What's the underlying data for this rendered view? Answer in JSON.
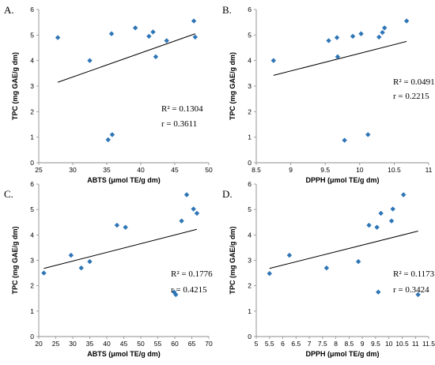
{
  "chart_data": [
    {
      "type": "scatter",
      "panel_label": "A.",
      "xlabel": "ABTS (μmol TE/g dm)",
      "ylabel": "TPC (mg GAE/g dm)",
      "xlim": [
        25,
        50
      ],
      "ylim": [
        0,
        6
      ],
      "xticks": [
        "25",
        "30",
        "35",
        "40",
        "45",
        "50"
      ],
      "yticks": [
        "0",
        "1",
        "2",
        "3",
        "4",
        "5",
        "6"
      ],
      "points": [
        {
          "x": 27.8,
          "y": 4.9
        },
        {
          "x": 32.5,
          "y": 4.0
        },
        {
          "x": 35.2,
          "y": 0.9
        },
        {
          "x": 35.8,
          "y": 1.1
        },
        {
          "x": 35.7,
          "y": 5.05
        },
        {
          "x": 39.2,
          "y": 5.28
        },
        {
          "x": 41.2,
          "y": 4.95
        },
        {
          "x": 41.8,
          "y": 5.12
        },
        {
          "x": 42.2,
          "y": 4.15
        },
        {
          "x": 43.8,
          "y": 4.78
        },
        {
          "x": 47.8,
          "y": 5.55
        },
        {
          "x": 48.0,
          "y": 4.92
        }
      ],
      "trendline": {
        "x1": 27.8,
        "y1": 3.15,
        "x2": 48.0,
        "y2": 5.05
      },
      "r2_text": "R² = 0.1304",
      "r_text": "r = 0.3611",
      "marker_color": "#2e75b6"
    },
    {
      "type": "scatter",
      "panel_label": "B.",
      "xlabel": "DPPH (μmol TE/g dm)",
      "ylabel": "TPC (mg GAE/g dm)",
      "xlim": [
        8.5,
        11
      ],
      "ylim": [
        0,
        6
      ],
      "xticks": [
        "8.5",
        "9",
        "9.5",
        "10",
        "10.5",
        "11"
      ],
      "yticks": [
        "0",
        "1",
        "2",
        "3",
        "4",
        "5",
        "6"
      ],
      "points": [
        {
          "x": 8.75,
          "y": 4.0
        },
        {
          "x": 9.55,
          "y": 4.78
        },
        {
          "x": 9.67,
          "y": 4.9
        },
        {
          "x": 9.68,
          "y": 4.15
        },
        {
          "x": 9.78,
          "y": 0.88
        },
        {
          "x": 9.9,
          "y": 4.95
        },
        {
          "x": 10.02,
          "y": 5.05
        },
        {
          "x": 10.12,
          "y": 1.1
        },
        {
          "x": 10.28,
          "y": 4.92
        },
        {
          "x": 10.33,
          "y": 5.1
        },
        {
          "x": 10.36,
          "y": 5.28
        },
        {
          "x": 10.68,
          "y": 5.55
        }
      ],
      "trendline": {
        "x1": 8.75,
        "y1": 3.42,
        "x2": 10.68,
        "y2": 4.75
      },
      "r2_text": "R² = 0.0491",
      "r_text": "r = 0.2215",
      "marker_color": "#2e75b6"
    },
    {
      "type": "scatter",
      "panel_label": "C.",
      "xlabel": "ABTS (μmol TE/g dm)",
      "ylabel": "TPC (mg GAE/g dm)",
      "xlim": [
        20,
        70
      ],
      "ylim": [
        0,
        6
      ],
      "xticks": [
        "20",
        "25",
        "30",
        "35",
        "40",
        "45",
        "50",
        "55",
        "60",
        "65",
        "70"
      ],
      "yticks": [
        "0",
        "1",
        "2",
        "3",
        "4",
        "5",
        "6"
      ],
      "points": [
        {
          "x": 21.5,
          "y": 2.5
        },
        {
          "x": 29.5,
          "y": 3.2
        },
        {
          "x": 32.5,
          "y": 2.7
        },
        {
          "x": 35.0,
          "y": 2.95
        },
        {
          "x": 43.0,
          "y": 4.38
        },
        {
          "x": 45.5,
          "y": 4.3
        },
        {
          "x": 59.8,
          "y": 1.75
        },
        {
          "x": 60.3,
          "y": 1.65
        },
        {
          "x": 62.0,
          "y": 4.55
        },
        {
          "x": 63.5,
          "y": 5.58
        },
        {
          "x": 65.5,
          "y": 5.02
        },
        {
          "x": 66.5,
          "y": 4.85
        }
      ],
      "trendline": {
        "x1": 21.5,
        "y1": 2.68,
        "x2": 66.5,
        "y2": 4.22
      },
      "r2_text": "R² = 0.1776",
      "r_text": "r = 0.4215",
      "marker_color": "#2e75b6"
    },
    {
      "type": "scatter",
      "panel_label": "D.",
      "xlabel": "DPPH (μmol TE/g dm)",
      "ylabel": "TPC (mg GAE/g dm)",
      "xlim": [
        5,
        11.5
      ],
      "ylim": [
        0,
        6
      ],
      "xticks": [
        "5",
        "5.5",
        "6",
        "6.5",
        "7",
        "7.5",
        "8",
        "8.5",
        "9",
        "9.5",
        "10",
        "10.5",
        "11",
        "11.5"
      ],
      "yticks": [
        "0",
        "1",
        "2",
        "3",
        "4",
        "5",
        "6"
      ],
      "points": [
        {
          "x": 5.5,
          "y": 2.48
        },
        {
          "x": 6.25,
          "y": 3.2
        },
        {
          "x": 7.65,
          "y": 2.7
        },
        {
          "x": 8.85,
          "y": 2.95
        },
        {
          "x": 9.25,
          "y": 4.38
        },
        {
          "x": 9.55,
          "y": 4.3
        },
        {
          "x": 9.6,
          "y": 1.75
        },
        {
          "x": 9.7,
          "y": 4.85
        },
        {
          "x": 10.1,
          "y": 4.55
        },
        {
          "x": 10.15,
          "y": 5.02
        },
        {
          "x": 10.55,
          "y": 5.58
        },
        {
          "x": 11.1,
          "y": 1.65
        }
      ],
      "trendline": {
        "x1": 5.5,
        "y1": 2.68,
        "x2": 11.1,
        "y2": 4.15
      },
      "r2_text": "R² = 0.1173",
      "r_text": "r = 0.3424",
      "marker_color": "#2e75b6"
    }
  ]
}
